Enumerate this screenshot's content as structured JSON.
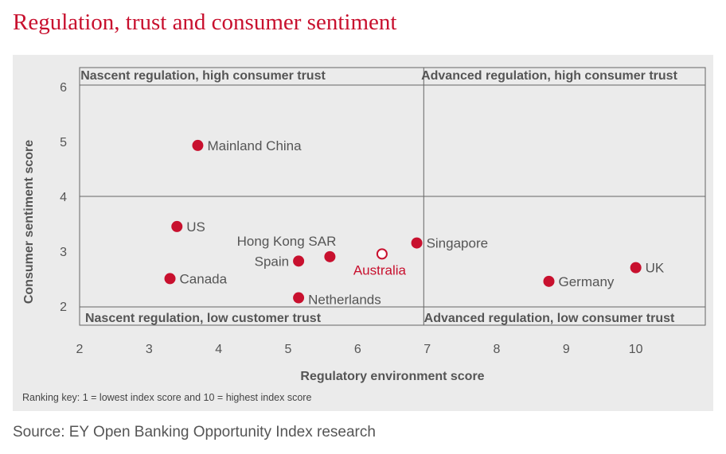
{
  "title": "Regulation, trust and consumer sentiment",
  "source": "Source: EY Open Banking Opportunity Index research",
  "colors": {
    "accent": "#c8102e",
    "panel": "#ebebeb",
    "text": "#555555",
    "grid": "#666666"
  },
  "chart_data": {
    "type": "scatter",
    "xlabel": "Regulatory environment score",
    "ylabel": "Consumer sentiment score",
    "xlim": [
      2,
      11
    ],
    "ylim": [
      1.65,
      6.35
    ],
    "x_ticks": [
      2,
      3,
      4,
      5,
      6,
      7,
      8,
      9,
      10
    ],
    "y_ticks": [
      2,
      3,
      4,
      5,
      6
    ],
    "grid": false,
    "quadrant_dividers": {
      "x": 6.95,
      "y": 4
    },
    "quadrants": {
      "top_left": "Nascent regulation, high consumer trust",
      "top_right": "Advanced regulation, high consumer trust",
      "bottom_left": "Nascent regulation, low customer trust",
      "bottom_right": "Advanced regulation, low consumer trust"
    },
    "footnote": "Ranking key: 1 = lowest index score and 10 = highest index score",
    "points": [
      {
        "label": "Mainland China",
        "x": 3.7,
        "y": 4.93,
        "label_pos": "right",
        "highlight": false
      },
      {
        "label": "US",
        "x": 3.4,
        "y": 3.45,
        "label_pos": "right",
        "highlight": false
      },
      {
        "label": "Canada",
        "x": 3.3,
        "y": 2.5,
        "label_pos": "right",
        "highlight": false
      },
      {
        "label": "Spain",
        "x": 5.15,
        "y": 2.82,
        "label_pos": "left",
        "highlight": false
      },
      {
        "label": "Hong Kong SAR",
        "x": 5.6,
        "y": 2.9,
        "label_pos": "above-left",
        "highlight": false
      },
      {
        "label": "Netherlands",
        "x": 5.15,
        "y": 2.15,
        "label_pos": "below-right",
        "highlight": false
      },
      {
        "label": "Australia",
        "x": 6.35,
        "y": 2.95,
        "label_pos": "below",
        "highlight": true
      },
      {
        "label": "Singapore",
        "x": 6.85,
        "y": 3.15,
        "label_pos": "right",
        "highlight": false
      },
      {
        "label": "Germany",
        "x": 8.75,
        "y": 2.45,
        "label_pos": "right",
        "highlight": false
      },
      {
        "label": "UK",
        "x": 10.0,
        "y": 2.7,
        "label_pos": "right",
        "highlight": false
      }
    ]
  }
}
